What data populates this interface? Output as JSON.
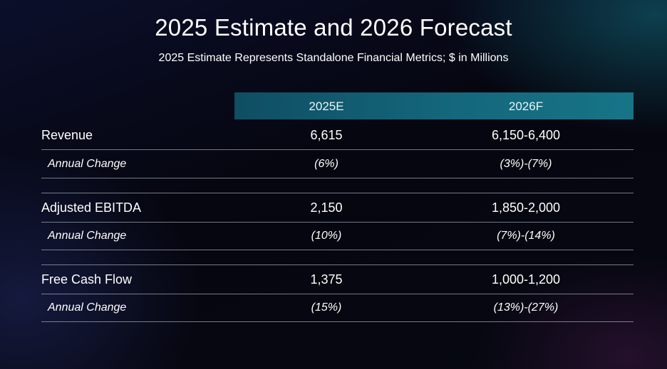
{
  "title": "2025 Estimate and 2026 Forecast",
  "subtitle": "2025 Estimate Represents Standalone Financial Metrics; $ in Millions",
  "columns": [
    "2025E",
    "2026F"
  ],
  "rows": [
    {
      "label": "Revenue",
      "e2025": "6,615",
      "f2026": "6,150-6,400"
    },
    {
      "label": "Annual Change",
      "e2025": "(6%)",
      "f2026": "(3%)-(7%)"
    },
    {
      "label": "Adjusted EBITDA",
      "e2025": "2,150",
      "f2026": "1,850-2,000"
    },
    {
      "label": "Annual Change",
      "e2025": "(10%)",
      "f2026": "(7%)-(14%)"
    },
    {
      "label": "Free Cash Flow",
      "e2025": "1,375",
      "f2026": "1,000-1,200"
    },
    {
      "label": "Annual Change",
      "e2025": "(15%)",
      "f2026": "(13%)-(27%)"
    }
  ]
}
